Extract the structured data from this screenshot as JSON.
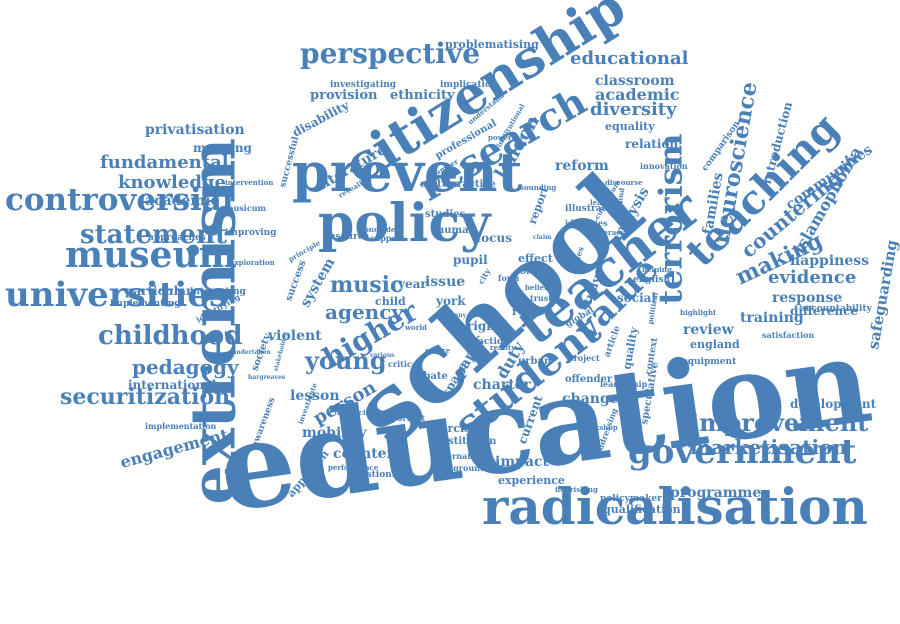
{
  "color": "#4a80b8",
  "words": [
    {
      "id": "education",
      "text": "education"
    },
    {
      "id": "school",
      "text": "school"
    },
    {
      "id": "extremism",
      "text": "extremism"
    },
    {
      "id": "radicalisation",
      "text": "radicalisation"
    },
    {
      "id": "citizenship",
      "text": "citizenship"
    },
    {
      "id": "prevent",
      "text": "prevent"
    },
    {
      "id": "policy",
      "text": "policy"
    },
    {
      "id": "teacher",
      "text": "teacher"
    },
    {
      "id": "teaching",
      "text": "teaching"
    },
    {
      "id": "student",
      "text": "student"
    },
    {
      "id": "government",
      "text": "government"
    },
    {
      "id": "research",
      "text": "research"
    },
    {
      "id": "terrorism",
      "text": "terrorism"
    },
    {
      "id": "value",
      "text": "value"
    },
    {
      "id": "controversial",
      "text": "controversial"
    },
    {
      "id": "universities",
      "text": "universities"
    },
    {
      "id": "museum",
      "text": "museum"
    },
    {
      "id": "statement",
      "text": "statement"
    },
    {
      "id": "childhood",
      "text": "childhood"
    },
    {
      "id": "pedagogy",
      "text": "pedagogy"
    },
    {
      "id": "securitization",
      "text": "securitization"
    },
    {
      "id": "perspective",
      "text": "perspective"
    },
    {
      "id": "improvement",
      "text": "improvement"
    },
    {
      "id": "marketisation",
      "text": "marketisation"
    },
    {
      "id": "higher",
      "text": "higher"
    },
    {
      "id": "young",
      "text": "young"
    },
    {
      "id": "music",
      "text": "music"
    },
    {
      "id": "agency",
      "text": "agency"
    },
    {
      "id": "fundamental",
      "text": "fundamental"
    },
    {
      "id": "knowledge",
      "text": "knowledge"
    },
    {
      "id": "academie",
      "text": "academie"
    },
    {
      "id": "engagement",
      "text": "engagement"
    },
    {
      "id": "educational",
      "text": "educational"
    },
    {
      "id": "academic",
      "text": "academic"
    },
    {
      "id": "diversity",
      "text": "diversity"
    },
    {
      "id": "classroom",
      "text": "classroom"
    },
    {
      "id": "neuroscience",
      "text": "neuroscience"
    },
    {
      "id": "countering",
      "text": "countering"
    },
    {
      "id": "making",
      "text": "making"
    },
    {
      "id": "evidence",
      "text": "evidence"
    },
    {
      "id": "happiness",
      "text": "happiness"
    },
    {
      "id": "response",
      "text": "response"
    },
    {
      "id": "islamophobia",
      "text": "islamophobia"
    },
    {
      "id": "communities",
      "text": "communities"
    },
    {
      "id": "safeguarding",
      "text": "safeguarding"
    },
    {
      "id": "london",
      "text": "london"
    },
    {
      "id": "reform",
      "text": "reform"
    },
    {
      "id": "literature",
      "text": "literature"
    },
    {
      "id": "provision",
      "text": "provision"
    },
    {
      "id": "ethnicity",
      "text": "ethnicity"
    },
    {
      "id": "disability",
      "text": "disability"
    },
    {
      "id": "privatisation",
      "text": "privatisation"
    },
    {
      "id": "mapping",
      "text": "mapping"
    },
    {
      "id": "international",
      "text": "international"
    },
    {
      "id": "lesson",
      "text": "lesson"
    },
    {
      "id": "person",
      "text": "person"
    },
    {
      "id": "violent",
      "text": "violent"
    },
    {
      "id": "mobility",
      "text": "mobility"
    },
    {
      "id": "counter",
      "text": "counter"
    },
    {
      "id": "charter",
      "text": "charter"
    },
    {
      "id": "duty",
      "text": "duty"
    },
    {
      "id": "paper",
      "text": "paper"
    },
    {
      "id": "change",
      "text": "change"
    },
    {
      "id": "impact",
      "text": "impact"
    },
    {
      "id": "experience",
      "text": "experience"
    },
    {
      "id": "programme",
      "text": "programme"
    },
    {
      "id": "qualification",
      "text": "qualification"
    },
    {
      "id": "policymaker",
      "text": "policymaker"
    },
    {
      "id": "development",
      "text": "development"
    },
    {
      "id": "review",
      "text": "review"
    },
    {
      "id": "england",
      "text": "england"
    },
    {
      "id": "training",
      "text": "training"
    },
    {
      "id": "difference",
      "text": "difference"
    },
    {
      "id": "accountability",
      "text": "accountability"
    },
    {
      "id": "relation",
      "text": "relation"
    },
    {
      "id": "equality",
      "text": "equality"
    },
    {
      "id": "introduction",
      "text": "introduction"
    },
    {
      "id": "families",
      "text": "families"
    },
    {
      "id": "comparison",
      "text": "comparison"
    },
    {
      "id": "analysis",
      "text": "analysis"
    },
    {
      "id": "social",
      "text": "social"
    },
    {
      "id": "english",
      "text": "english"
    },
    {
      "id": "problematising",
      "text": "problematising"
    },
    {
      "id": "implication",
      "text": "implication"
    },
    {
      "id": "investigating",
      "text": "investigating"
    },
    {
      "id": "professional",
      "text": "professional"
    },
    {
      "id": "system",
      "text": "system"
    },
    {
      "id": "year",
      "text": "year"
    },
    {
      "id": "issue",
      "text": "issue"
    },
    {
      "id": "pupil",
      "text": "pupil"
    },
    {
      "id": "focus",
      "text": "focus"
    },
    {
      "id": "york",
      "text": "york"
    },
    {
      "id": "right",
      "text": "right"
    },
    {
      "id": "action",
      "text": "action"
    },
    {
      "id": "role",
      "text": "role"
    },
    {
      "id": "exercise",
      "text": "exercise"
    },
    {
      "id": "institution",
      "text": "institution"
    },
    {
      "id": "alternative",
      "text": "alternative"
    },
    {
      "id": "current",
      "text": "current"
    },
    {
      "id": "implementing",
      "text": "implementing"
    },
    {
      "id": "particular",
      "text": "particular"
    },
    {
      "id": "interesting",
      "text": "interesting"
    },
    {
      "id": "implementation",
      "text": "implementation"
    },
    {
      "id": "approach",
      "text": "approach"
    },
    {
      "id": "questioning",
      "text": "questioning"
    },
    {
      "id": "studies",
      "text": "studies"
    },
    {
      "id": "culture",
      "text": "culture"
    },
    {
      "id": "practice",
      "text": "practice"
    },
    {
      "id": "successful",
      "text": "successful"
    },
    {
      "id": "human",
      "text": "human"
    },
    {
      "id": "support",
      "text": "support"
    },
    {
      "id": "resource",
      "text": "resource"
    },
    {
      "id": "child",
      "text": "child"
    },
    {
      "id": "success",
      "text": "success"
    },
    {
      "id": "quality",
      "text": "quality"
    },
    {
      "id": "innovation",
      "text": "innovation"
    },
    {
      "id": "report",
      "text": "report"
    },
    {
      "id": "illustrate",
      "text": "illustrate"
    },
    {
      "id": "identities",
      "text": "identities"
    },
    {
      "id": "effect",
      "text": "effect"
    },
    {
      "id": "order",
      "text": "order"
    },
    {
      "id": "study",
      "text": "study"
    },
    {
      "id": "global",
      "text": "global"
    },
    {
      "id": "urban",
      "text": "urban"
    },
    {
      "id": "offender",
      "text": "offender"
    },
    {
      "id": "debate",
      "text": "debate"
    },
    {
      "id": "space",
      "text": "space"
    },
    {
      "id": "important",
      "text": "important"
    },
    {
      "id": "speculative",
      "text": "speculative"
    },
    {
      "id": "context",
      "text": "context"
    },
    {
      "id": "equipment",
      "text": "equipment"
    },
    {
      "id": "satisfaction",
      "text": "satisfaction"
    },
    {
      "id": "leadership",
      "text": "leadership"
    },
    {
      "id": "workshop",
      "text": "workshop"
    },
    {
      "id": "improving",
      "text": "improving"
    },
    {
      "id": "musicum",
      "text": "musicum"
    },
    {
      "id": "exploration",
      "text": "exploration"
    },
    {
      "id": "approaches",
      "text": "approaches"
    },
    {
      "id": "identifying",
      "text": "identifying"
    },
    {
      "id": "intervention",
      "text": "intervention"
    },
    {
      "id": "critical",
      "text": "critical"
    },
    {
      "id": "balancing",
      "text": "balancing"
    },
    {
      "id": "awareness",
      "text": "awareness"
    },
    {
      "id": "investigate",
      "text": "investigate"
    },
    {
      "id": "performance",
      "text": "performance"
    },
    {
      "id": "background",
      "text": "background"
    },
    {
      "id": "conclude",
      "text": "conclude"
    },
    {
      "id": "revealing",
      "text": "revealing"
    },
    {
      "id": "sounding",
      "text": "sounding"
    },
    {
      "id": "powerful",
      "text": "powerful"
    },
    {
      "id": "understand",
      "text": "understand"
    },
    {
      "id": "institutional",
      "text": "institutional"
    },
    {
      "id": "number",
      "text": "number"
    },
    {
      "id": "city",
      "text": "city"
    },
    {
      "id": "form",
      "text": "form"
    },
    {
      "id": "belief",
      "text": "belief"
    },
    {
      "id": "trust",
      "text": "trust"
    },
    {
      "id": "cities",
      "text": "cities"
    },
    {
      "id": "principle",
      "text": "principle"
    },
    {
      "id": "flourishing",
      "text": "flourishing"
    },
    {
      "id": "article",
      "text": "article"
    },
    {
      "id": "addressing",
      "text": "addressing"
    },
    {
      "id": "project",
      "text": "project"
    },
    {
      "id": "highlight",
      "text": "highlight"
    },
    {
      "id": "helping",
      "text": "helping"
    },
    {
      "id": "political",
      "text": "political"
    },
    {
      "id": "learning",
      "text": "learning"
    },
    {
      "id": "curriculum",
      "text": "curriculum"
    },
    {
      "id": "literacy",
      "text": "literacy"
    },
    {
      "id": "sound",
      "text": "sound"
    },
    {
      "id": "discourse",
      "text": "discourse"
    },
    {
      "id": "claim",
      "text": "claim"
    },
    {
      "id": "society",
      "text": "society"
    },
    {
      "id": "world",
      "text": "world"
    },
    {
      "id": "centre",
      "text": "centre"
    },
    {
      "id": "reality",
      "text": "reality"
    },
    {
      "id": "undertaken",
      "text": "undertaken"
    },
    {
      "id": "hargreaves",
      "text": "hargreaves"
    },
    {
      "id": "stakeholder",
      "text": "stakeholder"
    },
    {
      "id": "various",
      "text": "various"
    },
    {
      "id": "many",
      "text": "many"
    }
  ]
}
